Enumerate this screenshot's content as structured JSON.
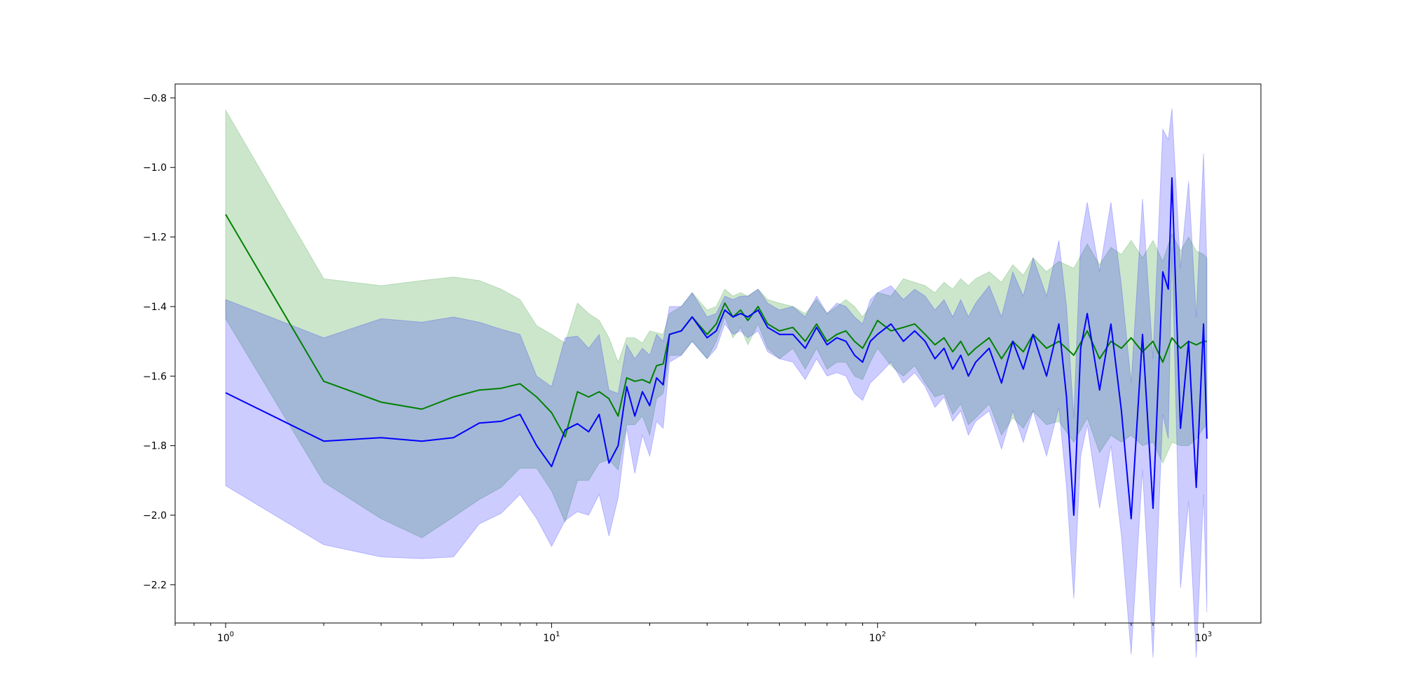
{
  "chart_data": {
    "type": "line",
    "title": "",
    "xlabel": "",
    "ylabel": "",
    "x_scale": "log",
    "xlim": [
      0.7,
      1500
    ],
    "ylim": [
      -2.31,
      -0.76
    ],
    "grid": false,
    "legend": "none",
    "x_ticks": [
      {
        "value": 1,
        "base": "10",
        "exp": "0"
      },
      {
        "value": 10,
        "base": "10",
        "exp": "1"
      },
      {
        "value": 100,
        "base": "10",
        "exp": "2"
      },
      {
        "value": 1000,
        "base": "10",
        "exp": "3"
      }
    ],
    "y_ticks": [
      {
        "value": -0.8,
        "label": "−0.8"
      },
      {
        "value": -1.0,
        "label": "−1.0"
      },
      {
        "value": -1.2,
        "label": "−1.2"
      },
      {
        "value": -1.4,
        "label": "−1.4"
      },
      {
        "value": -1.6,
        "label": "−1.6"
      },
      {
        "value": -1.8,
        "label": "−1.8"
      },
      {
        "value": -2.0,
        "label": "−2.0"
      },
      {
        "value": -2.2,
        "label": "−2.2"
      }
    ],
    "series": [
      {
        "color": "#008000",
        "band_color": "#008000",
        "band_opacity": 0.2,
        "x": [
          1,
          2,
          3,
          4,
          5,
          6,
          7,
          8,
          9,
          10,
          11,
          12,
          13,
          14,
          15,
          16,
          17,
          18,
          19,
          20,
          21,
          22,
          23,
          25,
          27,
          30,
          32,
          34,
          36,
          38,
          40,
          43,
          46,
          50,
          55,
          60,
          65,
          70,
          75,
          80,
          85,
          90,
          95,
          100,
          110,
          120,
          130,
          140,
          150,
          160,
          170,
          180,
          190,
          200,
          220,
          240,
          260,
          280,
          300,
          330,
          360,
          400,
          440,
          480,
          520,
          560,
          600,
          650,
          700,
          750,
          800,
          850,
          900,
          950,
          1000,
          1024
        ],
        "y": [
          -1.135,
          -1.615,
          -1.675,
          -1.695,
          -1.66,
          -1.64,
          -1.635,
          -1.622,
          -1.66,
          -1.705,
          -1.775,
          -1.645,
          -1.66,
          -1.645,
          -1.665,
          -1.715,
          -1.605,
          -1.615,
          -1.61,
          -1.62,
          -1.57,
          -1.565,
          -1.48,
          -1.47,
          -1.43,
          -1.48,
          -1.45,
          -1.39,
          -1.43,
          -1.41,
          -1.44,
          -1.4,
          -1.45,
          -1.47,
          -1.46,
          -1.5,
          -1.45,
          -1.5,
          -1.48,
          -1.47,
          -1.5,
          -1.52,
          -1.48,
          -1.44,
          -1.47,
          -1.46,
          -1.45,
          -1.48,
          -1.51,
          -1.49,
          -1.53,
          -1.5,
          -1.54,
          -1.52,
          -1.49,
          -1.55,
          -1.5,
          -1.53,
          -1.48,
          -1.52,
          -1.5,
          -1.54,
          -1.47,
          -1.55,
          -1.5,
          -1.52,
          -1.49,
          -1.53,
          -1.5,
          -1.56,
          -1.49,
          -1.52,
          -1.5,
          -1.51,
          -1.5,
          -1.5
        ],
        "upper": [
          -0.835,
          -1.32,
          -1.34,
          -1.325,
          -1.315,
          -1.325,
          -1.35,
          -1.38,
          -1.455,
          -1.48,
          -1.505,
          -1.39,
          -1.42,
          -1.44,
          -1.49,
          -1.56,
          -1.49,
          -1.49,
          -1.505,
          -1.47,
          -1.475,
          -1.48,
          -1.42,
          -1.4,
          -1.36,
          -1.41,
          -1.4,
          -1.35,
          -1.37,
          -1.36,
          -1.37,
          -1.35,
          -1.38,
          -1.39,
          -1.4,
          -1.42,
          -1.38,
          -1.42,
          -1.4,
          -1.38,
          -1.4,
          -1.43,
          -1.4,
          -1.36,
          -1.37,
          -1.32,
          -1.33,
          -1.34,
          -1.36,
          -1.33,
          -1.35,
          -1.32,
          -1.34,
          -1.32,
          -1.3,
          -1.33,
          -1.28,
          -1.31,
          -1.26,
          -1.3,
          -1.27,
          -1.29,
          -1.22,
          -1.28,
          -1.23,
          -1.25,
          -1.21,
          -1.26,
          -1.21,
          -1.27,
          -1.19,
          -1.24,
          -1.2,
          -1.24,
          -1.25,
          -1.26
        ],
        "lower": [
          -1.435,
          -1.905,
          -2.01,
          -2.065,
          -2.005,
          -1.955,
          -1.92,
          -1.865,
          -1.865,
          -1.93,
          -2.02,
          -1.9,
          -1.9,
          -1.85,
          -1.84,
          -1.87,
          -1.74,
          -1.74,
          -1.715,
          -1.77,
          -1.665,
          -1.65,
          -1.54,
          -1.54,
          -1.5,
          -1.55,
          -1.5,
          -1.43,
          -1.49,
          -1.46,
          -1.51,
          -1.45,
          -1.52,
          -1.55,
          -1.52,
          -1.58,
          -1.52,
          -1.58,
          -1.56,
          -1.56,
          -1.6,
          -1.61,
          -1.56,
          -1.52,
          -1.57,
          -1.6,
          -1.57,
          -1.62,
          -1.66,
          -1.65,
          -1.71,
          -1.68,
          -1.74,
          -1.72,
          -1.68,
          -1.77,
          -1.72,
          -1.75,
          -1.7,
          -1.74,
          -1.73,
          -1.79,
          -1.72,
          -1.82,
          -1.77,
          -1.79,
          -1.77,
          -1.8,
          -1.79,
          -1.85,
          -1.79,
          -1.8,
          -1.8,
          -1.78,
          -1.75,
          -1.74
        ]
      },
      {
        "color": "#0000ff",
        "band_color": "#0000ff",
        "band_opacity": 0.2,
        "x": [
          1,
          2,
          3,
          4,
          5,
          6,
          7,
          8,
          9,
          10,
          11,
          12,
          13,
          14,
          15,
          16,
          17,
          18,
          19,
          20,
          21,
          22,
          23,
          25,
          27,
          30,
          32,
          34,
          36,
          38,
          40,
          43,
          46,
          50,
          55,
          60,
          65,
          70,
          75,
          80,
          85,
          90,
          95,
          100,
          110,
          120,
          130,
          140,
          150,
          160,
          170,
          180,
          190,
          200,
          220,
          240,
          260,
          280,
          300,
          330,
          360,
          380,
          400,
          420,
          440,
          480,
          520,
          560,
          600,
          650,
          700,
          750,
          780,
          800,
          850,
          900,
          950,
          1000,
          1024
        ],
        "y": [
          -1.648,
          -1.787,
          -1.777,
          -1.787,
          -1.777,
          -1.735,
          -1.73,
          -1.71,
          -1.8,
          -1.86,
          -1.755,
          -1.737,
          -1.76,
          -1.71,
          -1.85,
          -1.8,
          -1.63,
          -1.715,
          -1.645,
          -1.685,
          -1.605,
          -1.625,
          -1.48,
          -1.47,
          -1.43,
          -1.49,
          -1.47,
          -1.41,
          -1.43,
          -1.42,
          -1.43,
          -1.41,
          -1.46,
          -1.48,
          -1.48,
          -1.52,
          -1.46,
          -1.51,
          -1.49,
          -1.5,
          -1.54,
          -1.56,
          -1.5,
          -1.48,
          -1.45,
          -1.5,
          -1.47,
          -1.5,
          -1.55,
          -1.52,
          -1.58,
          -1.54,
          -1.6,
          -1.56,
          -1.52,
          -1.62,
          -1.5,
          -1.58,
          -1.48,
          -1.6,
          -1.45,
          -1.66,
          -2.0,
          -1.52,
          -1.42,
          -1.64,
          -1.45,
          -1.7,
          -2.01,
          -1.48,
          -1.98,
          -1.3,
          -1.35,
          -1.03,
          -1.75,
          -1.5,
          -1.92,
          -1.45,
          -1.78
        ],
        "upper": [
          -1.38,
          -1.49,
          -1.435,
          -1.445,
          -1.43,
          -1.445,
          -1.465,
          -1.48,
          -1.6,
          -1.63,
          -1.49,
          -1.485,
          -1.52,
          -1.48,
          -1.64,
          -1.65,
          -1.51,
          -1.55,
          -1.52,
          -1.54,
          -1.48,
          -1.5,
          -1.4,
          -1.4,
          -1.36,
          -1.43,
          -1.42,
          -1.37,
          -1.38,
          -1.37,
          -1.37,
          -1.35,
          -1.39,
          -1.41,
          -1.4,
          -1.43,
          -1.37,
          -1.42,
          -1.39,
          -1.4,
          -1.43,
          -1.45,
          -1.38,
          -1.36,
          -1.34,
          -1.38,
          -1.35,
          -1.37,
          -1.41,
          -1.38,
          -1.43,
          -1.38,
          -1.43,
          -1.39,
          -1.34,
          -1.43,
          -1.3,
          -1.37,
          -1.26,
          -1.37,
          -1.21,
          -1.4,
          -1.72,
          -1.21,
          -1.1,
          -1.3,
          -1.1,
          -1.34,
          -1.62,
          -1.09,
          -1.55,
          -0.89,
          -0.92,
          -0.83,
          -1.29,
          -1.04,
          -1.43,
          -0.96,
          -1.28
        ],
        "lower": [
          -1.915,
          -2.085,
          -2.12,
          -2.125,
          -2.12,
          -2.025,
          -1.995,
          -1.94,
          -2.01,
          -2.09,
          -2.015,
          -1.99,
          -2.0,
          -1.94,
          -2.06,
          -1.95,
          -1.75,
          -1.88,
          -1.77,
          -1.83,
          -1.73,
          -1.75,
          -1.56,
          -1.54,
          -1.5,
          -1.55,
          -1.52,
          -1.45,
          -1.48,
          -1.47,
          -1.49,
          -1.47,
          -1.53,
          -1.55,
          -1.56,
          -1.61,
          -1.55,
          -1.6,
          -1.59,
          -1.6,
          -1.65,
          -1.67,
          -1.62,
          -1.6,
          -1.56,
          -1.62,
          -1.59,
          -1.63,
          -1.69,
          -1.66,
          -1.73,
          -1.7,
          -1.77,
          -1.73,
          -1.7,
          -1.81,
          -1.7,
          -1.79,
          -1.7,
          -1.83,
          -1.69,
          -1.92,
          -2.24,
          -1.83,
          -1.74,
          -1.98,
          -1.8,
          -2.06,
          -2.4,
          -1.87,
          -2.41,
          -1.71,
          -1.78,
          -1.23,
          -2.21,
          -1.96,
          -2.41,
          -1.94,
          -2.28
        ]
      }
    ]
  }
}
